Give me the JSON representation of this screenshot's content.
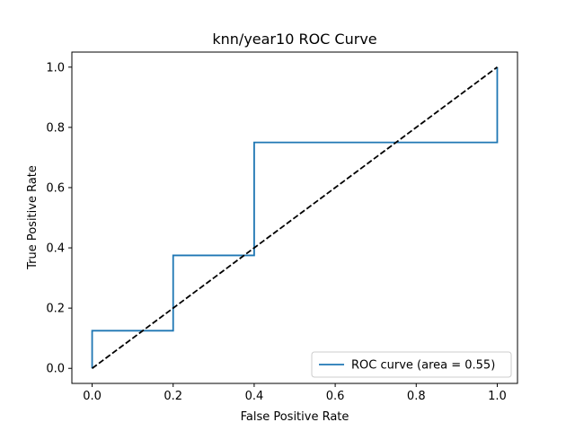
{
  "chart_data": {
    "type": "line",
    "title": "knn/year10 ROC Curve",
    "xlabel": "False Positive Rate",
    "ylabel": "True Positive Rate",
    "xlim": [
      -0.05,
      1.05
    ],
    "ylim": [
      -0.05,
      1.05
    ],
    "xticks": [
      "0.0",
      "0.2",
      "0.4",
      "0.6",
      "0.8",
      "1.0"
    ],
    "yticks": [
      "0.0",
      "0.2",
      "0.4",
      "0.6",
      "0.8",
      "1.0"
    ],
    "grid": false,
    "legend_position": "lower-right",
    "series": [
      {
        "name": "ROC curve (area = 0.55)",
        "color": "#1f77b4",
        "style": "solid",
        "x": [
          0.0,
          0.0,
          0.2,
          0.2,
          0.4,
          0.4,
          1.0,
          1.0
        ],
        "y": [
          0.0,
          0.125,
          0.125,
          0.375,
          0.375,
          0.75,
          0.75,
          1.0
        ]
      },
      {
        "color": "#000000",
        "style": "dashed",
        "x": [
          0.0,
          1.0
        ],
        "y": [
          0.0,
          1.0
        ]
      }
    ]
  }
}
